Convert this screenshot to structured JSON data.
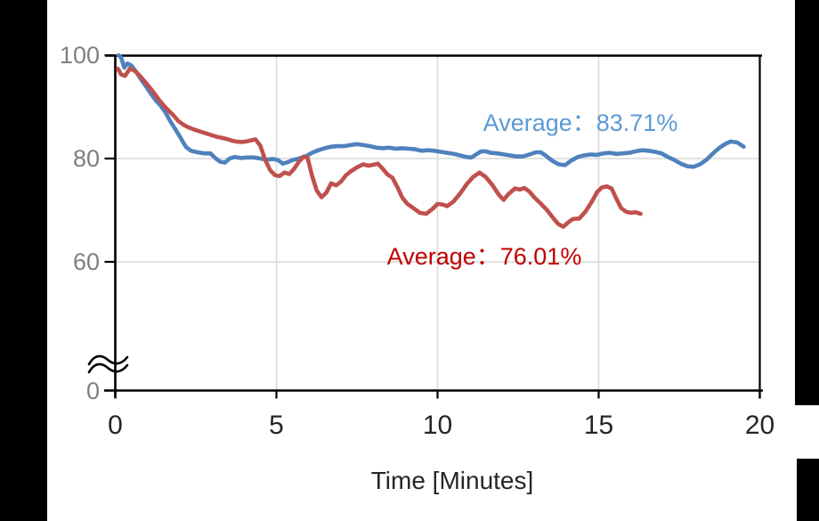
{
  "chart_data": {
    "type": "line",
    "title": "",
    "xlabel": "Time [Minutes]",
    "ylabel": "",
    "xlim": [
      0,
      20
    ],
    "ylim": [
      0,
      100
    ],
    "grid": true,
    "axis_break": {
      "present": true,
      "location": "y-axis between 0 and 60"
    },
    "x_ticks": [
      {
        "label": "0",
        "value": 0,
        "gridline": false
      },
      {
        "label": "5",
        "value": 5,
        "gridline": true
      },
      {
        "label": "10",
        "value": 10,
        "gridline": true
      },
      {
        "label": "15",
        "value": 15,
        "gridline": true
      },
      {
        "label": "20",
        "value": 20,
        "gridline": false
      }
    ],
    "y_ticks": [
      {
        "label": "100",
        "value": 100,
        "gridline": false,
        "at_axis_origin": false
      },
      {
        "label": "80",
        "value": 80,
        "gridline": true,
        "at_axis_origin": false
      },
      {
        "label": "60",
        "value": 60,
        "gridline": true,
        "at_axis_origin": false
      },
      {
        "label": "0",
        "value": 0,
        "gridline": false,
        "at_axis_origin": true
      }
    ],
    "annotations": {
      "blue_average": {
        "text": "Average：83.71%",
        "color": "#5B9BD5"
      },
      "red_average": {
        "text": "Average：76.01%",
        "color": "#C00000"
      }
    },
    "colors": {
      "gridline": "#D9D9D9",
      "axis": "#000000",
      "y_tick_label": "#7F7F7F",
      "x_tick_label": "#262626"
    },
    "series": [
      {
        "name": "blue-line",
        "color": "#4F81BD",
        "average_percent": 83.71,
        "points": [
          [
            0.1,
            100
          ],
          [
            0.18,
            99.6
          ],
          [
            0.28,
            97.6
          ],
          [
            0.38,
            98.4
          ],
          [
            0.5,
            98.0
          ],
          [
            0.65,
            96.8
          ],
          [
            0.8,
            95.3
          ],
          [
            0.95,
            94.0
          ],
          [
            1.1,
            92.6
          ],
          [
            1.25,
            91.3
          ],
          [
            1.4,
            90.3
          ],
          [
            1.55,
            89.0
          ],
          [
            1.7,
            87.3
          ],
          [
            1.85,
            85.8
          ],
          [
            2.0,
            84.3
          ],
          [
            2.1,
            83.2
          ],
          [
            2.2,
            82.2
          ],
          [
            2.35,
            81.5
          ],
          [
            2.55,
            81.2
          ],
          [
            2.75,
            81.0
          ],
          [
            2.95,
            81.0
          ],
          [
            3.1,
            80.1
          ],
          [
            3.25,
            79.4
          ],
          [
            3.4,
            79.2
          ],
          [
            3.55,
            80.0
          ],
          [
            3.7,
            80.3
          ],
          [
            3.9,
            80.1
          ],
          [
            4.1,
            80.2
          ],
          [
            4.3,
            80.2
          ],
          [
            4.5,
            80.0
          ],
          [
            4.7,
            79.8
          ],
          [
            4.9,
            79.9
          ],
          [
            5.05,
            79.7
          ],
          [
            5.2,
            79.0
          ],
          [
            5.35,
            79.3
          ],
          [
            5.5,
            79.7
          ],
          [
            5.7,
            80.0
          ],
          [
            5.9,
            80.4
          ],
          [
            6.1,
            81.1
          ],
          [
            6.3,
            81.6
          ],
          [
            6.5,
            82.0
          ],
          [
            6.7,
            82.3
          ],
          [
            6.9,
            82.4
          ],
          [
            7.1,
            82.4
          ],
          [
            7.3,
            82.6
          ],
          [
            7.5,
            82.8
          ],
          [
            7.7,
            82.6
          ],
          [
            7.9,
            82.4
          ],
          [
            8.1,
            82.1
          ],
          [
            8.3,
            82.0
          ],
          [
            8.5,
            82.1
          ],
          [
            8.7,
            81.9
          ],
          [
            8.9,
            82.0
          ],
          [
            9.1,
            81.9
          ],
          [
            9.3,
            81.8
          ],
          [
            9.5,
            81.5
          ],
          [
            9.7,
            81.6
          ],
          [
            9.9,
            81.5
          ],
          [
            10.1,
            81.3
          ],
          [
            10.3,
            81.1
          ],
          [
            10.5,
            80.9
          ],
          [
            10.7,
            80.6
          ],
          [
            10.9,
            80.3
          ],
          [
            11.05,
            80.2
          ],
          [
            11.2,
            80.8
          ],
          [
            11.35,
            81.4
          ],
          [
            11.5,
            81.4
          ],
          [
            11.65,
            81.1
          ],
          [
            11.85,
            81.0
          ],
          [
            12.05,
            80.8
          ],
          [
            12.25,
            80.6
          ],
          [
            12.45,
            80.4
          ],
          [
            12.65,
            80.4
          ],
          [
            12.85,
            80.8
          ],
          [
            13.05,
            81.2
          ],
          [
            13.2,
            81.2
          ],
          [
            13.35,
            80.6
          ],
          [
            13.55,
            79.6
          ],
          [
            13.75,
            78.9
          ],
          [
            13.95,
            78.7
          ],
          [
            14.15,
            79.6
          ],
          [
            14.35,
            80.3
          ],
          [
            14.55,
            80.6
          ],
          [
            14.75,
            80.8
          ],
          [
            14.95,
            80.7
          ],
          [
            15.15,
            81.0
          ],
          [
            15.35,
            81.1
          ],
          [
            15.55,
            80.9
          ],
          [
            15.75,
            81.0
          ],
          [
            15.95,
            81.1
          ],
          [
            16.15,
            81.4
          ],
          [
            16.35,
            81.6
          ],
          [
            16.55,
            81.5
          ],
          [
            16.75,
            81.3
          ],
          [
            16.95,
            81.0
          ],
          [
            17.15,
            80.3
          ],
          [
            17.35,
            79.7
          ],
          [
            17.55,
            79.0
          ],
          [
            17.75,
            78.5
          ],
          [
            17.95,
            78.4
          ],
          [
            18.15,
            78.9
          ],
          [
            18.35,
            79.8
          ],
          [
            18.55,
            81.0
          ],
          [
            18.75,
            82.1
          ],
          [
            18.95,
            82.9
          ],
          [
            19.1,
            83.3
          ],
          [
            19.3,
            83.1
          ],
          [
            19.5,
            82.3
          ]
        ]
      },
      {
        "name": "red-line",
        "color": "#C0504D",
        "average_percent": 76.01,
        "points": [
          [
            0.08,
            97.4
          ],
          [
            0.18,
            96.3
          ],
          [
            0.3,
            96.0
          ],
          [
            0.45,
            97.4
          ],
          [
            0.6,
            97.0
          ],
          [
            0.75,
            96.1
          ],
          [
            0.9,
            95.0
          ],
          [
            1.05,
            93.9
          ],
          [
            1.2,
            92.7
          ],
          [
            1.35,
            91.4
          ],
          [
            1.5,
            90.3
          ],
          [
            1.65,
            89.3
          ],
          [
            1.8,
            88.4
          ],
          [
            1.95,
            87.3
          ],
          [
            2.1,
            86.6
          ],
          [
            2.25,
            86.1
          ],
          [
            2.4,
            85.7
          ],
          [
            2.55,
            85.4
          ],
          [
            2.7,
            85.1
          ],
          [
            2.85,
            84.8
          ],
          [
            3.0,
            84.5
          ],
          [
            3.15,
            84.2
          ],
          [
            3.3,
            84.0
          ],
          [
            3.45,
            83.8
          ],
          [
            3.6,
            83.5
          ],
          [
            3.75,
            83.3
          ],
          [
            3.9,
            83.2
          ],
          [
            4.05,
            83.3
          ],
          [
            4.2,
            83.5
          ],
          [
            4.35,
            83.7
          ],
          [
            4.5,
            82.5
          ],
          [
            4.65,
            79.8
          ],
          [
            4.8,
            77.8
          ],
          [
            4.95,
            76.8
          ],
          [
            5.1,
            76.6
          ],
          [
            5.25,
            77.3
          ],
          [
            5.4,
            77.0
          ],
          [
            5.55,
            78.0
          ],
          [
            5.7,
            79.4
          ],
          [
            5.85,
            80.4
          ],
          [
            5.97,
            80.1
          ],
          [
            6.1,
            76.8
          ],
          [
            6.25,
            73.8
          ],
          [
            6.4,
            72.5
          ],
          [
            6.55,
            73.4
          ],
          [
            6.7,
            75.2
          ],
          [
            6.85,
            74.8
          ],
          [
            7.0,
            75.5
          ],
          [
            7.15,
            76.7
          ],
          [
            7.3,
            77.5
          ],
          [
            7.5,
            78.3
          ],
          [
            7.7,
            78.9
          ],
          [
            7.85,
            78.6
          ],
          [
            8.0,
            78.8
          ],
          [
            8.15,
            79.0
          ],
          [
            8.3,
            78.0
          ],
          [
            8.45,
            76.9
          ],
          [
            8.6,
            76.3
          ],
          [
            8.75,
            74.5
          ],
          [
            8.9,
            72.5
          ],
          [
            9.05,
            71.3
          ],
          [
            9.25,
            70.4
          ],
          [
            9.45,
            69.5
          ],
          [
            9.65,
            69.3
          ],
          [
            9.85,
            70.3
          ],
          [
            10.0,
            71.2
          ],
          [
            10.15,
            71.1
          ],
          [
            10.3,
            70.8
          ],
          [
            10.5,
            71.7
          ],
          [
            10.7,
            73.2
          ],
          [
            10.9,
            75.0
          ],
          [
            11.1,
            76.4
          ],
          [
            11.3,
            77.3
          ],
          [
            11.5,
            76.4
          ],
          [
            11.7,
            74.9
          ],
          [
            11.9,
            73.0
          ],
          [
            12.05,
            72.0
          ],
          [
            12.2,
            73.1
          ],
          [
            12.4,
            74.2
          ],
          [
            12.55,
            74.0
          ],
          [
            12.7,
            74.3
          ],
          [
            12.85,
            73.6
          ],
          [
            13.0,
            72.5
          ],
          [
            13.2,
            71.3
          ],
          [
            13.4,
            70.0
          ],
          [
            13.6,
            68.4
          ],
          [
            13.75,
            67.3
          ],
          [
            13.9,
            66.8
          ],
          [
            14.05,
            67.6
          ],
          [
            14.2,
            68.3
          ],
          [
            14.4,
            68.4
          ],
          [
            14.6,
            69.8
          ],
          [
            14.8,
            71.8
          ],
          [
            14.95,
            73.5
          ],
          [
            15.1,
            74.4
          ],
          [
            15.25,
            74.6
          ],
          [
            15.4,
            74.2
          ],
          [
            15.55,
            72.2
          ],
          [
            15.7,
            70.4
          ],
          [
            15.85,
            69.7
          ],
          [
            16.0,
            69.5
          ],
          [
            16.15,
            69.6
          ],
          [
            16.3,
            69.3
          ]
        ]
      }
    ]
  }
}
